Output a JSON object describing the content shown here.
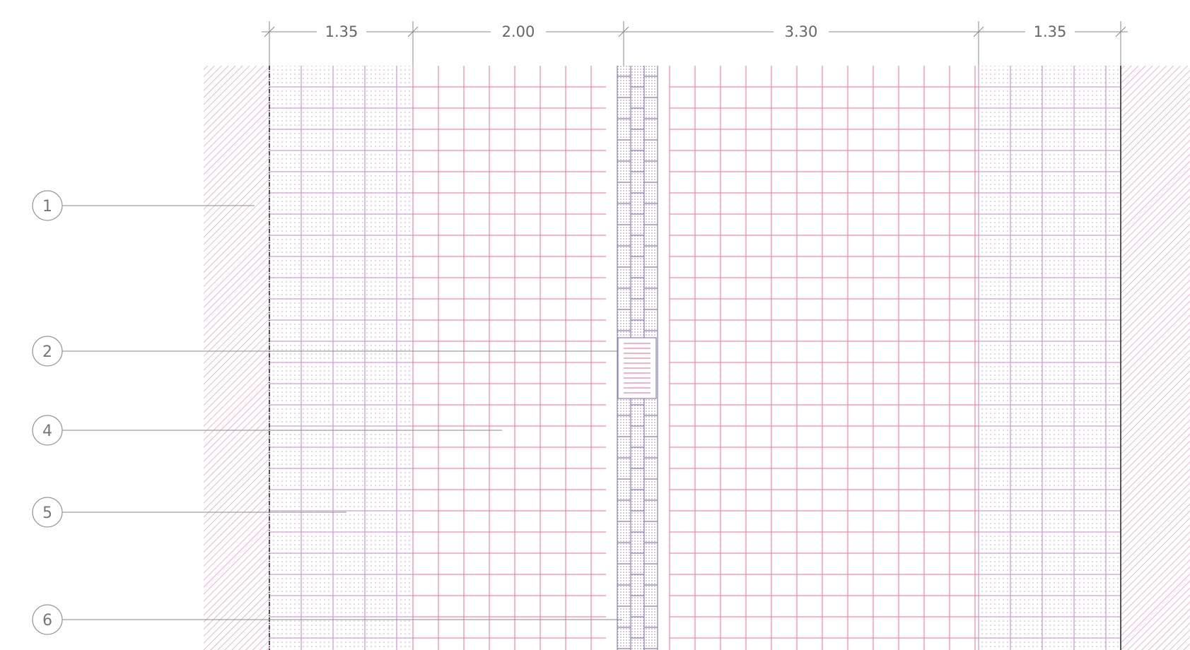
{
  "dimensions": [
    {
      "label": "1.35"
    },
    {
      "label": "2.00"
    },
    {
      "label": "3.30"
    },
    {
      "label": "1.35"
    }
  ],
  "callouts": [
    {
      "number": "1"
    },
    {
      "number": "2"
    },
    {
      "number": "4"
    },
    {
      "number": "5"
    },
    {
      "number": "6"
    }
  ],
  "colors": {
    "hatch": "#e48aae",
    "paving_grid": "#f06e96",
    "tile_dotted": "#c9a2cf",
    "kerb_block": "#8f7fb4",
    "dimension_line": "#888888",
    "leader_line": "#8a8a8a",
    "edge_line": "#444444"
  }
}
